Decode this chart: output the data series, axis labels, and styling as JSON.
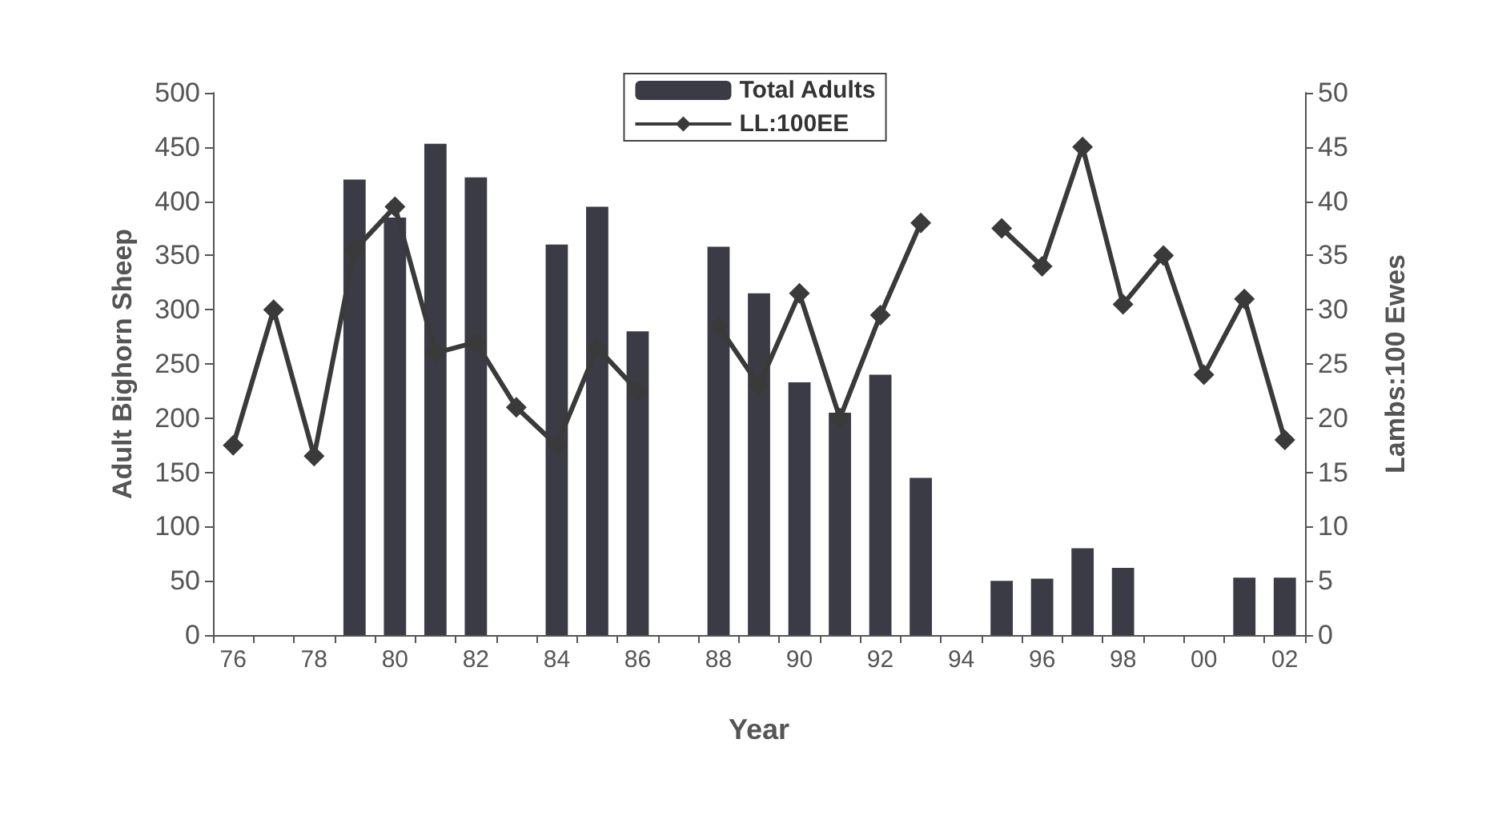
{
  "chart_data": {
    "type": "bar",
    "xlabel": "Year",
    "ylabel": "Adult Bighorn Sheep",
    "y2label": "Lambs:100 Ewes",
    "categories": [
      "76",
      null,
      "78",
      null,
      "80",
      null,
      "82",
      null,
      "84",
      null,
      "86",
      null,
      "88",
      null,
      "90",
      null,
      "92",
      null,
      "94",
      null,
      "96",
      null,
      "98",
      null,
      "00",
      null,
      "02"
    ],
    "series": [
      {
        "name": "Total Adults",
        "color": "#3b3b45",
        "values": [
          null,
          null,
          null,
          420,
          385,
          453,
          422,
          null,
          360,
          395,
          280,
          null,
          358,
          315,
          233,
          205,
          240,
          145,
          null,
          50,
          52,
          80,
          62,
          null,
          null,
          53,
          53
        ]
      },
      {
        "name": "LL:100EE",
        "type": "line",
        "axis": "y2",
        "color": "#3a3a3a",
        "marker": "diamond",
        "values": [
          17.5,
          30,
          16.5,
          35.5,
          39.5,
          26,
          27,
          21,
          17.5,
          26.5,
          22.5,
          null,
          28.5,
          23,
          31.5,
          20,
          29.5,
          38,
          null,
          37.5,
          34,
          45,
          30.5,
          35,
          24,
          31,
          18
        ]
      }
    ],
    "ylim": [
      0,
      500
    ],
    "yticks": [
      0,
      50,
      100,
      150,
      200,
      250,
      300,
      350,
      400,
      450,
      500
    ],
    "y2lim": [
      0,
      50
    ],
    "y2ticks": [
      0,
      5,
      10,
      15,
      20,
      25,
      30,
      35,
      40,
      45,
      50
    ],
    "legend": "top",
    "grid": false
  }
}
